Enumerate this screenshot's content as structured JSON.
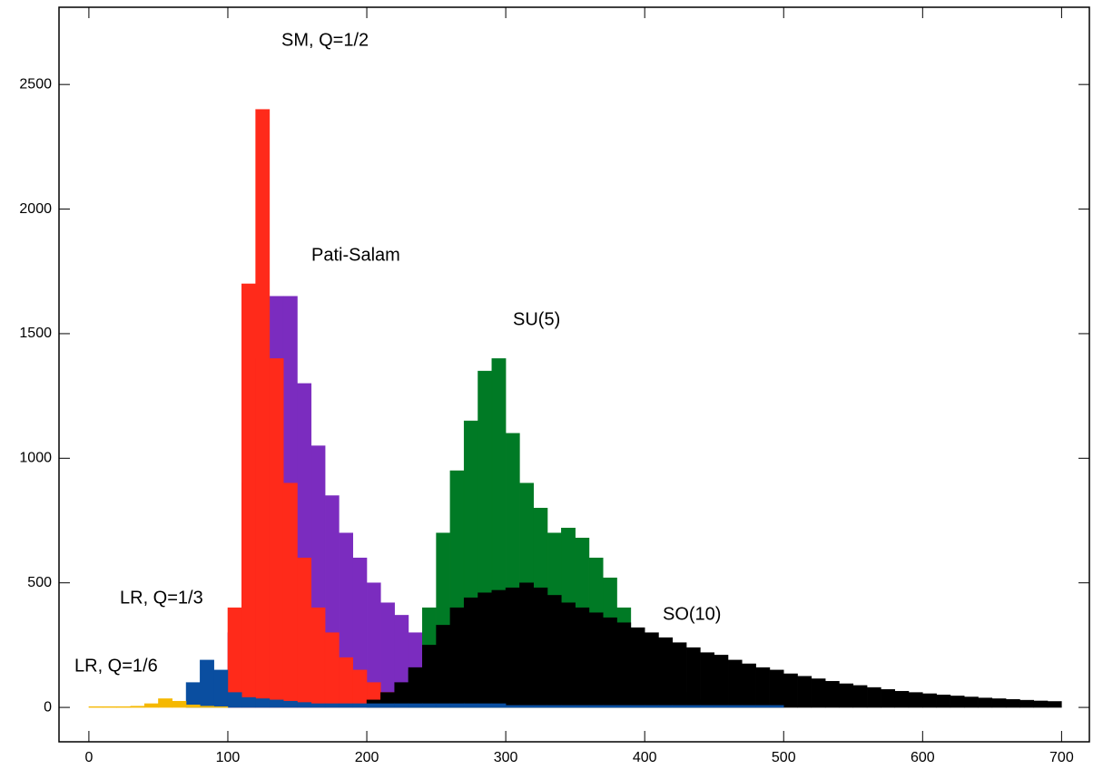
{
  "chart_data": {
    "type": "histogram",
    "bins": [
      0,
      10,
      20,
      30,
      40,
      50,
      60,
      70,
      80,
      90,
      100,
      110,
      120,
      130,
      140,
      150,
      160,
      170,
      180,
      190,
      200,
      210,
      220,
      230,
      240,
      250,
      260,
      270,
      280,
      290,
      300,
      310,
      320,
      330,
      340,
      350,
      360,
      370,
      380,
      390,
      400,
      410,
      420,
      430,
      440,
      450,
      460,
      470,
      480,
      490,
      500,
      510,
      520,
      530,
      540,
      550,
      560,
      570,
      580,
      590,
      600,
      610,
      620,
      630,
      640,
      650,
      660,
      670,
      680,
      690,
      700
    ],
    "series": [
      {
        "name": "Pati-Salam",
        "color": "#7b2cbf",
        "values": [
          0,
          0,
          0,
          0,
          0,
          0,
          0,
          0,
          0,
          0,
          300,
          900,
          1400,
          1650,
          1650,
          1300,
          1050,
          850,
          700,
          600,
          500,
          420,
          370,
          300,
          220,
          150,
          100,
          60,
          30,
          15,
          0,
          0,
          0,
          0,
          0,
          0,
          0,
          0,
          0,
          0,
          0,
          0,
          0,
          0,
          0,
          0,
          0,
          0,
          0,
          0,
          0,
          0,
          0,
          0,
          0,
          0,
          0,
          0,
          0,
          0,
          0,
          0,
          0,
          0,
          0,
          0,
          0,
          0,
          0,
          0
        ]
      },
      {
        "name": "SM, Q=1/2",
        "color": "#ff2a1a",
        "values": [
          0,
          0,
          0,
          0,
          0,
          0,
          0,
          0,
          0,
          0,
          400,
          1700,
          2400,
          1400,
          900,
          600,
          400,
          300,
          200,
          150,
          100,
          60,
          40,
          25,
          10,
          10,
          10,
          10,
          10,
          10,
          10,
          10,
          10,
          10,
          10,
          10,
          10,
          10,
          10,
          10,
          10,
          10,
          10,
          10,
          10,
          10,
          10,
          10,
          10,
          10,
          0,
          0,
          0,
          0,
          0,
          0,
          0,
          0,
          0,
          0,
          0,
          0,
          0,
          0,
          0,
          0,
          0,
          0,
          0,
          0
        ]
      },
      {
        "name": "SU(5)",
        "color": "#007a25",
        "values": [
          0,
          0,
          0,
          0,
          0,
          0,
          0,
          0,
          0,
          0,
          0,
          0,
          0,
          0,
          0,
          0,
          0,
          0,
          0,
          0,
          0,
          0,
          0,
          150,
          400,
          700,
          950,
          1150,
          1350,
          1400,
          1100,
          900,
          800,
          700,
          720,
          680,
          600,
          520,
          400,
          300,
          200,
          120,
          60,
          30,
          0,
          0,
          0,
          0,
          0,
          0,
          0,
          0,
          0,
          0,
          0,
          0,
          0,
          0,
          0,
          0,
          0,
          0,
          0,
          0,
          0,
          0,
          0,
          0,
          0,
          0
        ]
      },
      {
        "name": "SO(10)",
        "color": "#000000",
        "values": [
          0,
          0,
          0,
          0,
          0,
          0,
          0,
          0,
          0,
          0,
          0,
          0,
          0,
          0,
          0,
          0,
          0,
          0,
          0,
          0,
          30,
          60,
          100,
          160,
          250,
          330,
          400,
          440,
          460,
          470,
          480,
          500,
          480,
          450,
          420,
          400,
          380,
          360,
          340,
          320,
          300,
          280,
          260,
          240,
          220,
          210,
          190,
          175,
          160,
          150,
          135,
          125,
          115,
          105,
          95,
          88,
          80,
          72,
          65,
          60,
          55,
          50,
          46,
          42,
          38,
          35,
          32,
          29,
          26,
          24
        ]
      },
      {
        "name": "LR, Q=1/3",
        "color": "#0a4ea0",
        "values": [
          0,
          0,
          0,
          0,
          0,
          0,
          0,
          100,
          190,
          150,
          60,
          40,
          35,
          30,
          25,
          20,
          15,
          15,
          15,
          15,
          15,
          15,
          15,
          15,
          15,
          15,
          15,
          15,
          15,
          15,
          8,
          8,
          8,
          8,
          8,
          8,
          8,
          8,
          8,
          8,
          8,
          8,
          8,
          8,
          8,
          8,
          8,
          8,
          8,
          8,
          0,
          0,
          0,
          0,
          0,
          0,
          0,
          0,
          0,
          0,
          0,
          0,
          0,
          0,
          0,
          0,
          0,
          0,
          0,
          0
        ]
      },
      {
        "name": "LR, Q=1/6",
        "color": "#f5b800",
        "values": [
          3,
          3,
          3,
          5,
          15,
          35,
          25,
          10,
          5,
          3,
          0,
          0,
          0,
          0,
          0,
          0,
          0,
          0,
          0,
          0,
          0,
          0,
          0,
          0,
          0,
          0,
          0,
          0,
          0,
          0,
          0,
          0,
          0,
          0,
          0,
          0,
          0,
          0,
          0,
          0,
          0,
          0,
          0,
          0,
          0,
          0,
          0,
          0,
          0,
          0,
          0,
          0,
          0,
          0,
          0,
          0,
          0,
          0,
          0,
          0,
          0,
          0,
          0,
          0,
          0,
          0,
          0,
          0,
          0,
          0
        ]
      }
    ],
    "xlim": [
      -21.5,
      720
    ],
    "ylim": [
      -138,
      2810
    ],
    "xticks": [
      0,
      100,
      200,
      300,
      400,
      500,
      600,
      700
    ],
    "yticks": [
      0,
      500,
      1000,
      1500,
      2000,
      2500
    ]
  }
}
